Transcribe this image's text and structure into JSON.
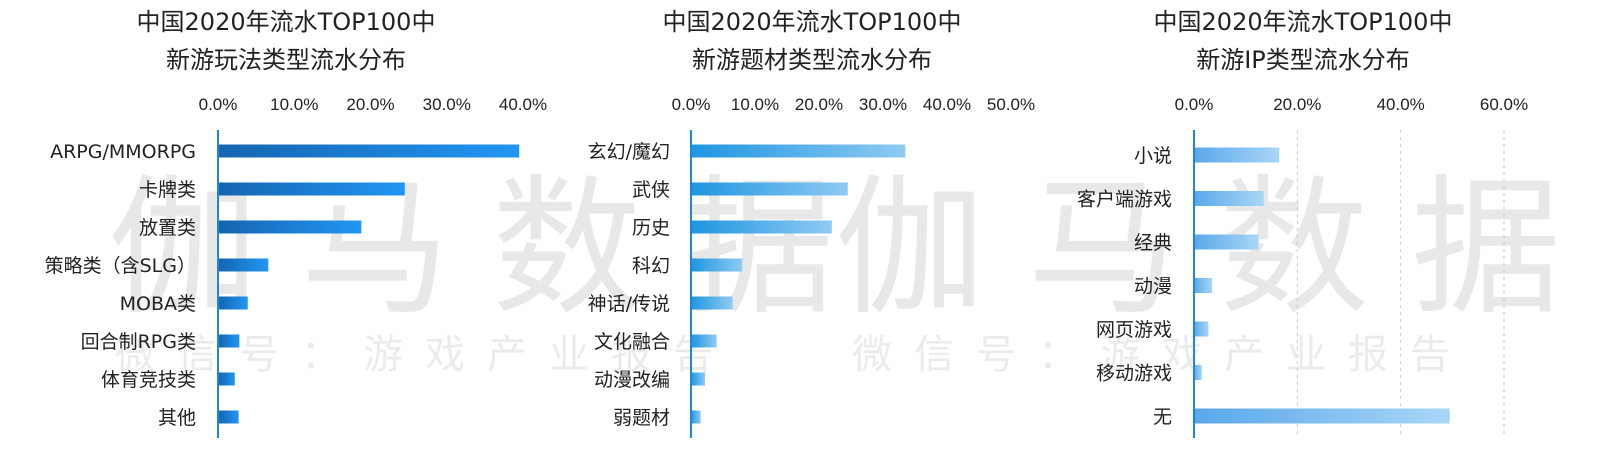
{
  "watermark": {
    "main": "伽马数据",
    "sub": "微信号：游戏产业报告"
  },
  "chart_data": [
    {
      "type": "bar",
      "orientation": "horizontal",
      "title": [
        "中国2020年流水TOP100中",
        "新游玩法类型流水分布"
      ],
      "categories": [
        "ARPG/MMORPG",
        "卡牌类",
        "放置类",
        "策略类（含SLG）",
        "MOBA类",
        "回合制RPG类",
        "体育竞技类",
        "其他"
      ],
      "values": [
        39.5,
        24.5,
        18.8,
        6.6,
        3.9,
        2.8,
        2.2,
        2.7
      ],
      "xlim": [
        0,
        40
      ],
      "ticks": [
        "0.0%",
        "10.0%",
        "20.0%",
        "30.0%",
        "40.0%"
      ],
      "grid": false,
      "colors": [
        "#1565b0",
        "#2196f3"
      ]
    },
    {
      "type": "bar",
      "orientation": "horizontal",
      "title": [
        "中国2020年流水TOP100中",
        "新游题材类型流水分布"
      ],
      "categories": [
        "玄幻/魔幻",
        "武侠",
        "历史",
        "科幻",
        "神话/传说",
        "文化融合",
        "动漫改编",
        "弱题材"
      ],
      "values": [
        33.5,
        24.5,
        22.0,
        8.0,
        6.5,
        4.0,
        2.2,
        1.5
      ],
      "xlim": [
        0,
        50
      ],
      "ticks": [
        "0.0%",
        "10.0%",
        "20.0%",
        "30.0%",
        "40.0%",
        "50.0%"
      ],
      "grid": false,
      "colors": [
        "#1e96e0",
        "#8fcaf3"
      ]
    },
    {
      "type": "bar",
      "orientation": "horizontal",
      "title": [
        "中国2020年流水TOP100中",
        "新游IP类型流水分布"
      ],
      "categories": [
        "小说",
        "客户端游戏",
        "经典",
        "动漫",
        "网页游戏",
        "移动游戏",
        "无"
      ],
      "values": [
        16.5,
        13.5,
        12.5,
        3.5,
        2.8,
        1.5,
        49.5
      ],
      "xlim": [
        0,
        60
      ],
      "ticks": [
        "0.0%",
        "20.0%",
        "40.0%",
        "60.0%"
      ],
      "grid": true,
      "colors": [
        "#5aa8ea",
        "#a9d6f7"
      ]
    }
  ]
}
